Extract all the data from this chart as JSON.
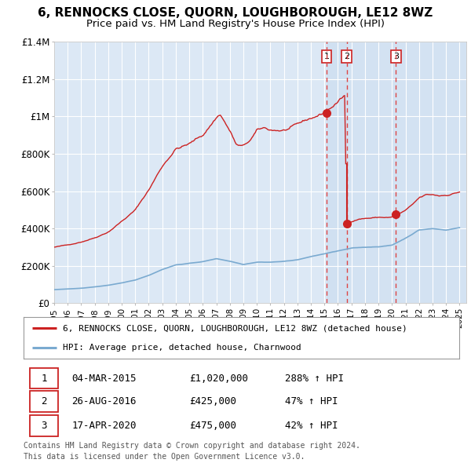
{
  "title": "6, RENNOCKS CLOSE, QUORN, LOUGHBOROUGH, LE12 8WZ",
  "subtitle": "Price paid vs. HM Land Registry's House Price Index (HPI)",
  "title_fontsize": 11,
  "subtitle_fontsize": 9.5,
  "background_color": "#ffffff",
  "plot_bg_color": "#dce8f5",
  "grid_color": "#ffffff",
  "ylim": [
    0,
    1400000
  ],
  "yticks": [
    0,
    200000,
    400000,
    600000,
    800000,
    1000000,
    1200000,
    1400000
  ],
  "ytick_labels": [
    "£0",
    "£200K",
    "£400K",
    "£600K",
    "£800K",
    "£1M",
    "£1.2M",
    "£1.4M"
  ],
  "xlim_start": 1995.0,
  "xlim_end": 2025.5,
  "red_line_color": "#cc2222",
  "blue_line_color": "#7aaad0",
  "sale_line_color": "#dd4444",
  "shade_color": "#ccddf0",
  "sales": [
    {
      "num": 1,
      "date": "04-MAR-2015",
      "price": 1020000,
      "x": 2015.17,
      "pct": "288%",
      "dir": "↑"
    },
    {
      "num": 2,
      "date": "26-AUG-2016",
      "price": 425000,
      "x": 2016.65,
      "pct": "47%",
      "dir": "↑"
    },
    {
      "num": 3,
      "date": "17-APR-2020",
      "price": 475000,
      "x": 2020.3,
      "pct": "42%",
      "dir": "↑"
    }
  ],
  "legend_line1": "6, RENNOCKS CLOSE, QUORN, LOUGHBOROUGH, LE12 8WZ (detached house)",
  "legend_line2": "HPI: Average price, detached house, Charnwood",
  "footer1": "Contains HM Land Registry data © Crown copyright and database right 2024.",
  "footer2": "This data is licensed under the Open Government Licence v3.0."
}
